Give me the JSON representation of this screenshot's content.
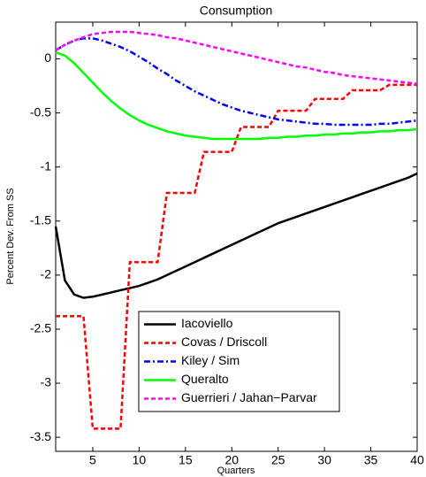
{
  "chart_data": {
    "type": "line",
    "title": "Consumption",
    "x_label": "Quarters",
    "y_label": "Percent Dev. From SS",
    "x": [
      1,
      2,
      3,
      4,
      5,
      6,
      7,
      8,
      9,
      10,
      11,
      12,
      13,
      14,
      15,
      16,
      17,
      18,
      19,
      20,
      21,
      22,
      23,
      24,
      25,
      26,
      27,
      28,
      29,
      30,
      31,
      32,
      33,
      34,
      35,
      36,
      37,
      38,
      39,
      40
    ],
    "xlim": [
      1,
      40
    ],
    "xticks": [
      5,
      10,
      15,
      20,
      25,
      30,
      35,
      40
    ],
    "ylim": [
      -3.63,
      0.34
    ],
    "yticks": [
      -3.5,
      -3,
      -2.5,
      -2,
      -1.5,
      -1,
      -0.5,
      0
    ],
    "grid": false,
    "legend": "lower center",
    "series": [
      {
        "name": "Iacoviello",
        "color": "#000000",
        "style": "solid",
        "values": [
          -1.55,
          -2.05,
          -2.18,
          -2.21,
          -2.2,
          -2.18,
          -2.16,
          -2.14,
          -2.12,
          -2.1,
          -2.07,
          -2.04,
          -2.0,
          -1.96,
          -1.92,
          -1.88,
          -1.84,
          -1.8,
          -1.76,
          -1.72,
          -1.68,
          -1.64,
          -1.6,
          -1.56,
          -1.52,
          -1.49,
          -1.46,
          -1.43,
          -1.4,
          -1.37,
          -1.34,
          -1.31,
          -1.28,
          -1.25,
          -1.22,
          -1.19,
          -1.16,
          -1.13,
          -1.1,
          -1.06
        ]
      },
      {
        "name": "Covas / Driscoll",
        "color": "#ff0000",
        "style": "dashed",
        "values": [
          -2.38,
          -2.38,
          -2.38,
          -2.38,
          -3.42,
          -3.42,
          -3.42,
          -3.42,
          -1.88,
          -1.88,
          -1.88,
          -1.88,
          -1.24,
          -1.24,
          -1.24,
          -1.24,
          -0.86,
          -0.86,
          -0.86,
          -0.86,
          -0.63,
          -0.63,
          -0.63,
          -0.63,
          -0.48,
          -0.48,
          -0.48,
          -0.48,
          -0.37,
          -0.37,
          -0.37,
          -0.37,
          -0.29,
          -0.29,
          -0.29,
          -0.29,
          -0.24,
          -0.24,
          -0.24,
          -0.24
        ]
      },
      {
        "name": "Kiley / Sim",
        "color": "#0000ff",
        "style": "dashdot",
        "values": [
          0.08,
          0.13,
          0.17,
          0.19,
          0.19,
          0.17,
          0.14,
          0.11,
          0.07,
          0.02,
          -0.03,
          -0.09,
          -0.14,
          -0.2,
          -0.25,
          -0.3,
          -0.34,
          -0.38,
          -0.42,
          -0.45,
          -0.48,
          -0.5,
          -0.52,
          -0.54,
          -0.56,
          -0.57,
          -0.58,
          -0.59,
          -0.6,
          -0.6,
          -0.61,
          -0.61,
          -0.61,
          -0.61,
          -0.61,
          -0.6,
          -0.6,
          -0.59,
          -0.58,
          -0.57
        ]
      },
      {
        "name": "Queralto",
        "color": "#00ff00",
        "style": "solid",
        "values": [
          0.06,
          0.03,
          -0.04,
          -0.13,
          -0.22,
          -0.31,
          -0.39,
          -0.46,
          -0.52,
          -0.57,
          -0.61,
          -0.64,
          -0.67,
          -0.69,
          -0.71,
          -0.72,
          -0.73,
          -0.74,
          -0.74,
          -0.74,
          -0.74,
          -0.74,
          -0.74,
          -0.73,
          -0.73,
          -0.72,
          -0.72,
          -0.71,
          -0.71,
          -0.7,
          -0.7,
          -0.69,
          -0.69,
          -0.68,
          -0.68,
          -0.67,
          -0.67,
          -0.66,
          -0.66,
          -0.65
        ]
      },
      {
        "name": "Guerrieri / Jahan−Parvar",
        "color": "#ff00ff",
        "style": "dashed",
        "values": [
          0.08,
          0.13,
          0.17,
          0.2,
          0.23,
          0.24,
          0.25,
          0.25,
          0.25,
          0.24,
          0.23,
          0.22,
          0.2,
          0.19,
          0.17,
          0.15,
          0.13,
          0.11,
          0.09,
          0.07,
          0.05,
          0.03,
          0.01,
          -0.01,
          -0.03,
          -0.05,
          -0.07,
          -0.08,
          -0.1,
          -0.12,
          -0.13,
          -0.15,
          -0.16,
          -0.17,
          -0.18,
          -0.19,
          -0.2,
          -0.21,
          -0.22,
          -0.23
        ]
      }
    ]
  }
}
